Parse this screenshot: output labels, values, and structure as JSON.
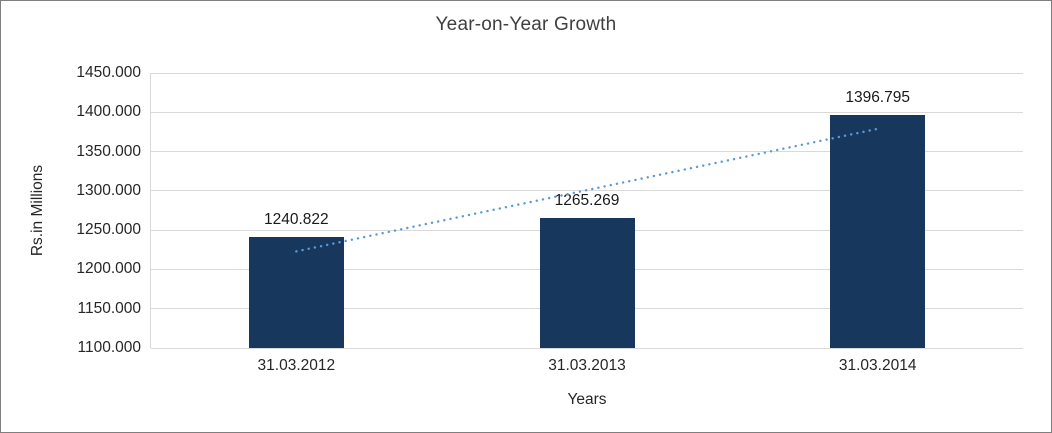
{
  "chart_data": {
    "type": "bar",
    "title": "Year-on-Year Growth",
    "xlabel": "Years",
    "ylabel": "Rs.in Millions",
    "categories": [
      "31.03.2012",
      "31.03.2013",
      "31.03.2014"
    ],
    "values": [
      1240.822,
      1265.269,
      1396.795
    ],
    "value_labels": [
      "1240.822",
      "1265.269",
      "1396.795"
    ],
    "ylim": [
      1100,
      1450
    ],
    "ytick_step": 50,
    "ytick_labels": [
      "1450.000",
      "1400.000",
      "1350.000",
      "1300.000",
      "1250.000",
      "1200.000",
      "1150.000",
      "1100.000"
    ],
    "grid": "horizontal",
    "legend": "none",
    "bar_color": "#17375D",
    "gridline_color": "#d9d9d9",
    "trendline": {
      "type": "linear",
      "style": "dotted",
      "color": "#5B9BD5"
    }
  }
}
